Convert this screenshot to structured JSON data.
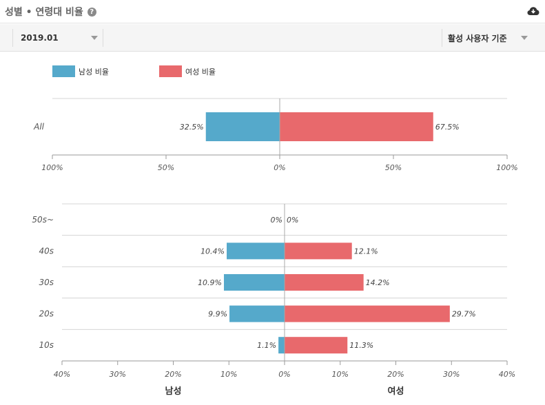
{
  "header": {
    "title": "성별 • 연령대 비율",
    "help_icon": "question-circle-icon",
    "download_icon": "cloud-download-icon"
  },
  "toolbar": {
    "date_value": "2019.01",
    "basis_value": "활성 사용자 기준"
  },
  "colors": {
    "male": "#55a9cb",
    "female": "#e8696c"
  },
  "legend": {
    "male_label": "남성 비율",
    "female_label": "여성 비율"
  },
  "chart_data": [
    {
      "type": "bar",
      "orientation": "horizontal-diverging",
      "categories": [
        "All"
      ],
      "series": [
        {
          "name": "남성 비율",
          "values": [
            32.5
          ],
          "labels": [
            "32.5%"
          ]
        },
        {
          "name": "여성 비율",
          "values": [
            67.5
          ],
          "labels": [
            "67.5%"
          ]
        }
      ],
      "xlim": [
        -100,
        100
      ],
      "ticks": [
        "100%",
        "50%",
        "0%",
        "50%",
        "100%"
      ],
      "grid": true
    },
    {
      "type": "bar",
      "orientation": "horizontal-diverging",
      "categories": [
        "50s~",
        "40s",
        "30s",
        "20s",
        "10s"
      ],
      "series": [
        {
          "name": "남성",
          "values": [
            0,
            10.4,
            10.9,
            9.9,
            1.1
          ],
          "labels": [
            "0%",
            "10.4%",
            "10.9%",
            "9.9%",
            "1.1%"
          ]
        },
        {
          "name": "여성",
          "values": [
            0,
            12.1,
            14.2,
            29.7,
            11.3
          ],
          "labels": [
            "0%",
            "12.1%",
            "14.2%",
            "29.7%",
            "11.3%"
          ]
        }
      ],
      "xlim": [
        -40,
        40
      ],
      "ticks": [
        "40%",
        "30%",
        "20%",
        "10%",
        "0%",
        "10%",
        "20%",
        "30%",
        "40%"
      ],
      "side_labels": [
        "남성",
        "여성"
      ],
      "grid": true
    }
  ]
}
